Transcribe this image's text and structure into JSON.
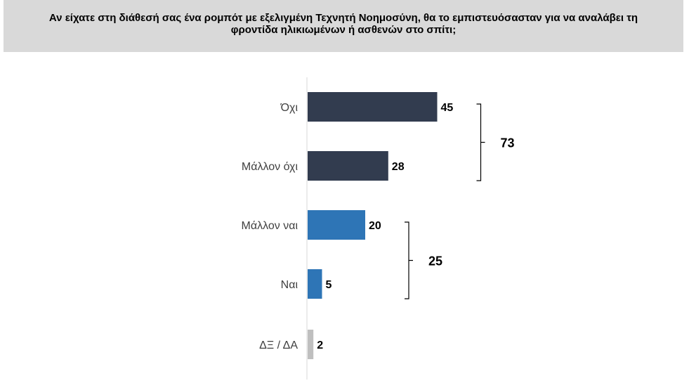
{
  "header": {
    "title_line1": "Αν είχατε στη διάθεσή σας ένα ρομπότ με εξελιγμένη Τεχνητή Νοημοσύνη, θα το εμπιστευόσασταν για να αναλάβει τη",
    "title_line2": "φροντίδα ηλικιωμένων ή ασθενών στο σπίτι;"
  },
  "chart_data": {
    "type": "bar",
    "orientation": "horizontal",
    "categories": [
      "Όχι",
      "Μάλλον όχι",
      "Μάλλον ναι",
      "Ναι",
      "ΔΞ / ΔΑ"
    ],
    "values": [
      45,
      28,
      20,
      5,
      2
    ],
    "colors": [
      "#323c4f",
      "#323c4f",
      "#2e75b6",
      "#2e75b6",
      "#bfbfbf"
    ],
    "groups": [
      {
        "label": "73",
        "from": 0,
        "to": 1
      },
      {
        "label": "25",
        "from": 2,
        "to": 3
      }
    ],
    "xlim": [
      0,
      100
    ],
    "grid": false,
    "legend": "none"
  }
}
